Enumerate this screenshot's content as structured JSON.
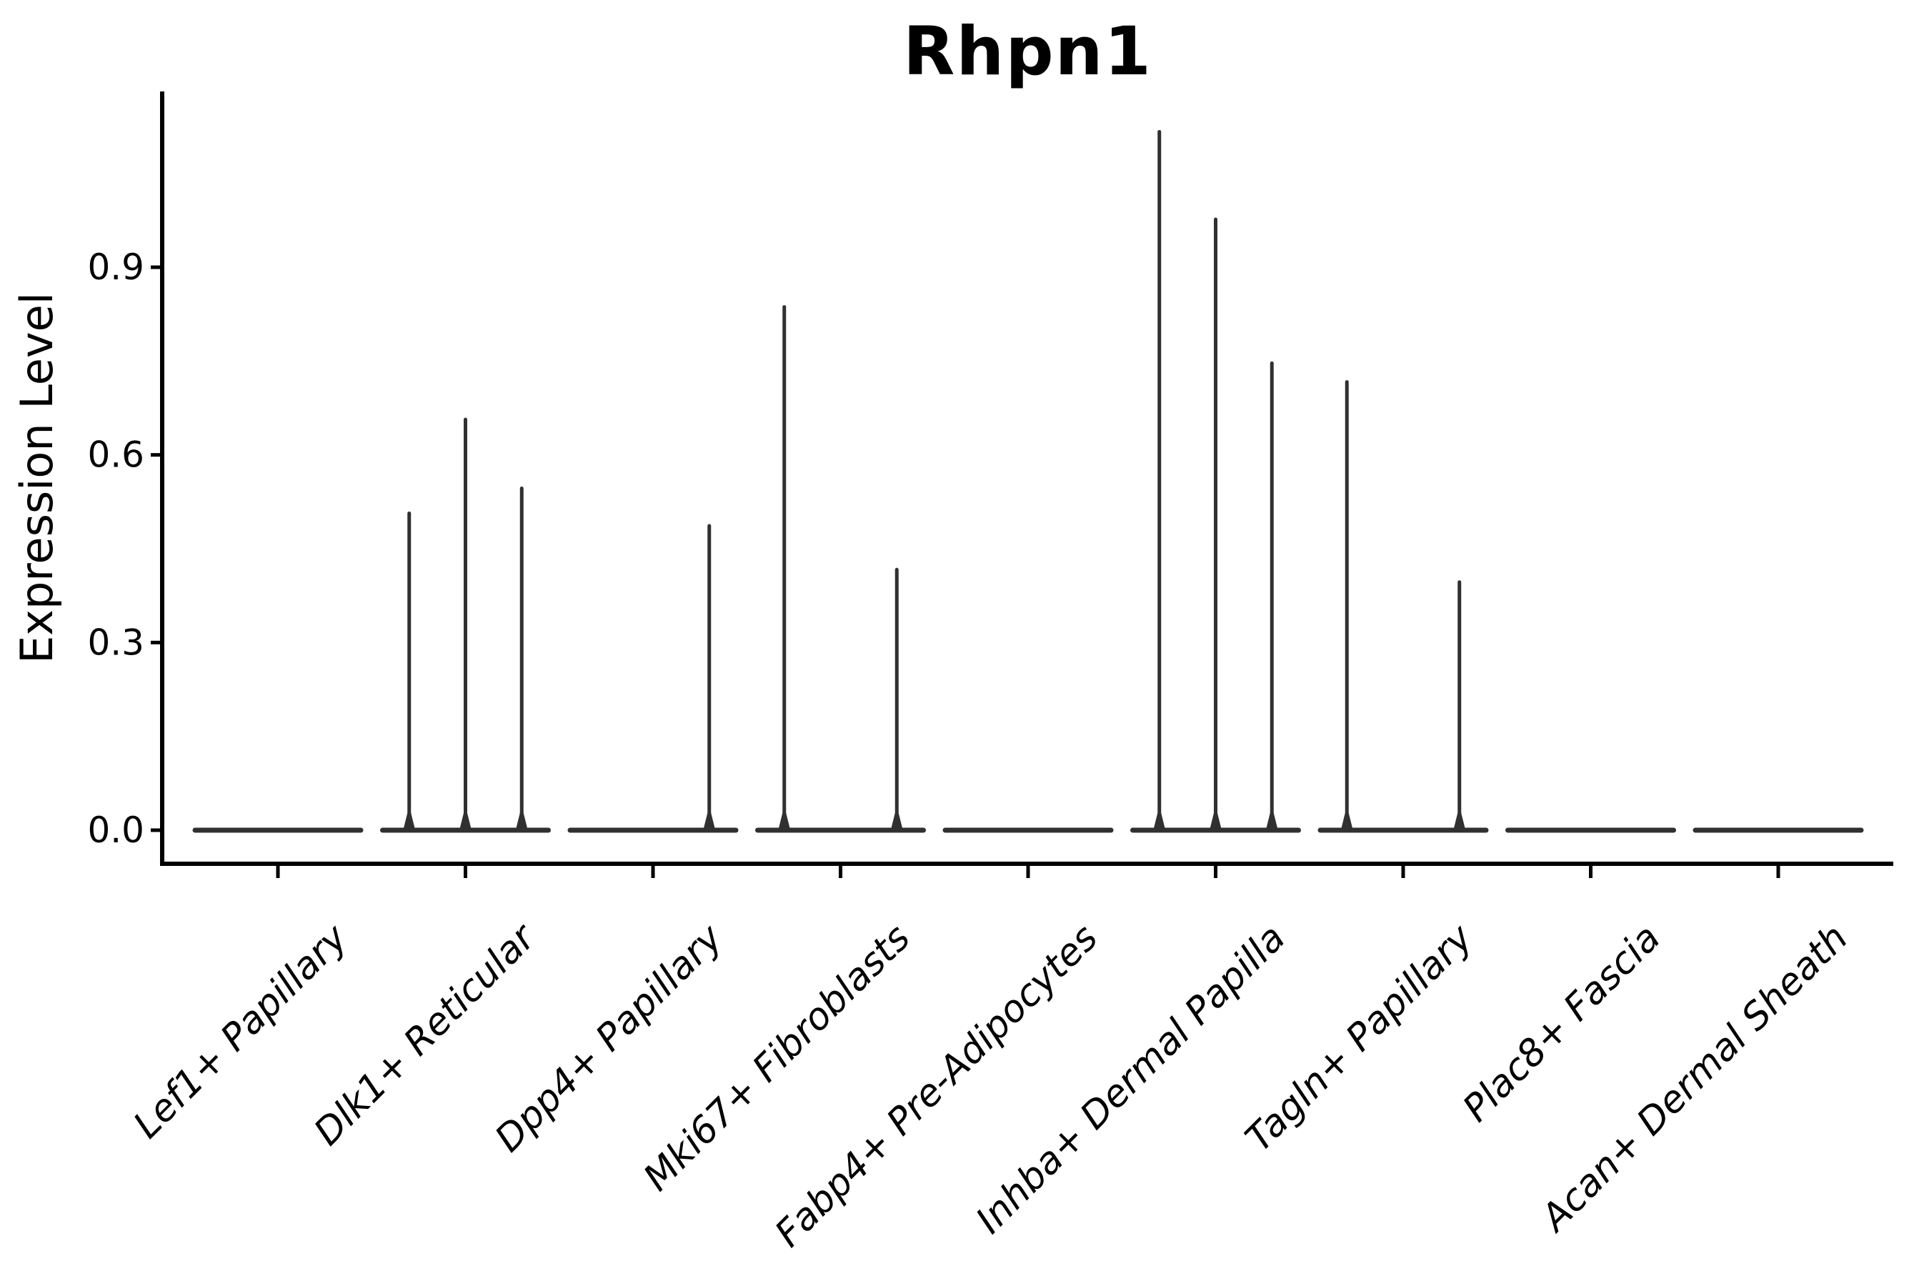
{
  "title": "Rhpn1",
  "y_axis": {
    "label": "Expression Level",
    "tick_labels": [
      "0.0",
      "0.3",
      "0.6",
      "0.9"
    ]
  },
  "x_axis": {
    "categories": [
      "Lef1+ Papillary",
      "Dlk1+ Reticular",
      "Dpp4+ Papillary",
      "Mki67+ Fibroblasts",
      "Fabp4+ Pre-Adipocytes",
      "Inhba+ Dermal Papilla",
      "Tagln+ Papillary",
      "Plac8+ Fascia",
      "Acan+ Dermal Sheath"
    ]
  },
  "colors": {
    "violin": "#303030",
    "axis": "#000000",
    "text": "#000000",
    "background": "#ffffff"
  },
  "chart_data": {
    "type": "violin",
    "title": "Rhpn1",
    "xlabel": "",
    "ylabel": "Expression Level",
    "categories": [
      "Lef1+ Papillary",
      "Dlk1+ Reticular",
      "Dpp4+ Papillary",
      "Mki67+ Fibroblasts",
      "Fabp4+ Pre-Adipocytes",
      "Inhba+ Dermal Papilla",
      "Tagln+ Papillary",
      "Plac8+ Fascia",
      "Acan+ Dermal Sheath"
    ],
    "yticks": [
      0.0,
      0.3,
      0.6,
      0.9
    ],
    "ylim": [
      -0.054,
      1.18
    ],
    "grid": false,
    "legend": false,
    "violins_per_category": 3,
    "series": [
      {
        "category": "Lef1+ Papillary",
        "spikes": []
      },
      {
        "category": "Dlk1+ Reticular",
        "spikes": [
          {
            "slot": -1,
            "max": 0.51
          },
          {
            "slot": 0,
            "max": 0.66
          },
          {
            "slot": 1,
            "max": 0.55
          }
        ]
      },
      {
        "category": "Dpp4+ Papillary",
        "spikes": [
          {
            "slot": 1,
            "max": 0.49
          }
        ]
      },
      {
        "category": "Mki67+ Fibroblasts",
        "spikes": [
          {
            "slot": -1,
            "max": 0.84
          },
          {
            "slot": 1,
            "max": 0.42
          }
        ]
      },
      {
        "category": "Fabp4+ Pre-Adipocytes",
        "spikes": []
      },
      {
        "category": "Inhba+ Dermal Papilla",
        "spikes": [
          {
            "slot": -1,
            "max": 1.12
          },
          {
            "slot": 0,
            "max": 0.98
          },
          {
            "slot": 1,
            "max": 0.75
          }
        ]
      },
      {
        "category": "Tagln+ Papillary",
        "spikes": [
          {
            "slot": -1,
            "max": 0.72
          },
          {
            "slot": 1,
            "max": 0.4
          }
        ]
      },
      {
        "category": "Plac8+ Fascia",
        "spikes": []
      },
      {
        "category": "Acan+ Dermal Sheath",
        "spikes": []
      }
    ],
    "description": "Violin plot; every violin is flat at expression 0 with thin density spikes rising to the maximum expression value."
  }
}
